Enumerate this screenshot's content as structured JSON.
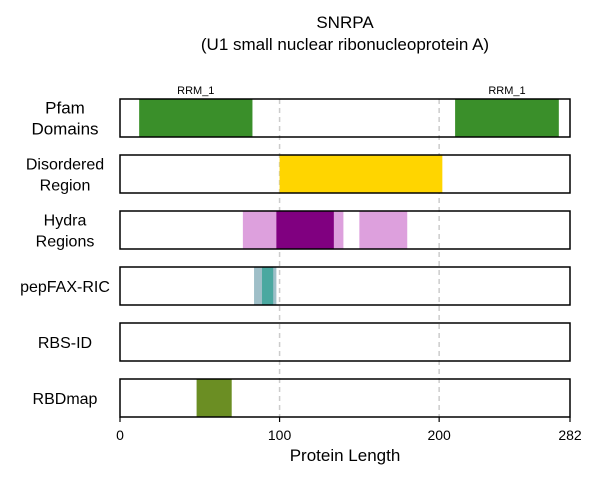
{
  "chart_data": {
    "type": "bar",
    "title": "SNRPA",
    "subtitle": "(U1 small nuclear ribonucleoprotein A)",
    "xlabel": "Protein Length",
    "xlim": [
      0,
      282
    ],
    "xticks": [
      0,
      100,
      200,
      282
    ],
    "gridlines": [
      100,
      200
    ],
    "tracks": [
      {
        "label_lines": [
          "Pfam",
          "Domains"
        ],
        "segments": [
          {
            "start": 12,
            "end": 83,
            "color": "#3a8f2a",
            "label": "RRM_1"
          },
          {
            "start": 210,
            "end": 275,
            "color": "#3a8f2a",
            "label": "RRM_1"
          }
        ]
      },
      {
        "label_lines": [
          "Disordered",
          "Region"
        ],
        "segments": [
          {
            "start": 100,
            "end": 202,
            "color": "#ffd500"
          }
        ]
      },
      {
        "label_lines": [
          "Hydra",
          "Regions"
        ],
        "segments": [
          {
            "start": 77,
            "end": 140,
            "color": "#dda0dd"
          },
          {
            "start": 150,
            "end": 180,
            "color": "#dda0dd"
          },
          {
            "start": 98,
            "end": 134,
            "color": "#800080"
          }
        ]
      },
      {
        "label_lines": [
          "pepFAX-RIC"
        ],
        "segments": [
          {
            "start": 84,
            "end": 98,
            "color": "#9fbfc8"
          },
          {
            "start": 89,
            "end": 96,
            "color": "#4aa8a0"
          }
        ]
      },
      {
        "label_lines": [
          "RBS-ID"
        ],
        "segments": []
      },
      {
        "label_lines": [
          "RBDmap"
        ],
        "segments": [
          {
            "start": 48,
            "end": 70,
            "color": "#6b8e23"
          }
        ]
      }
    ]
  }
}
